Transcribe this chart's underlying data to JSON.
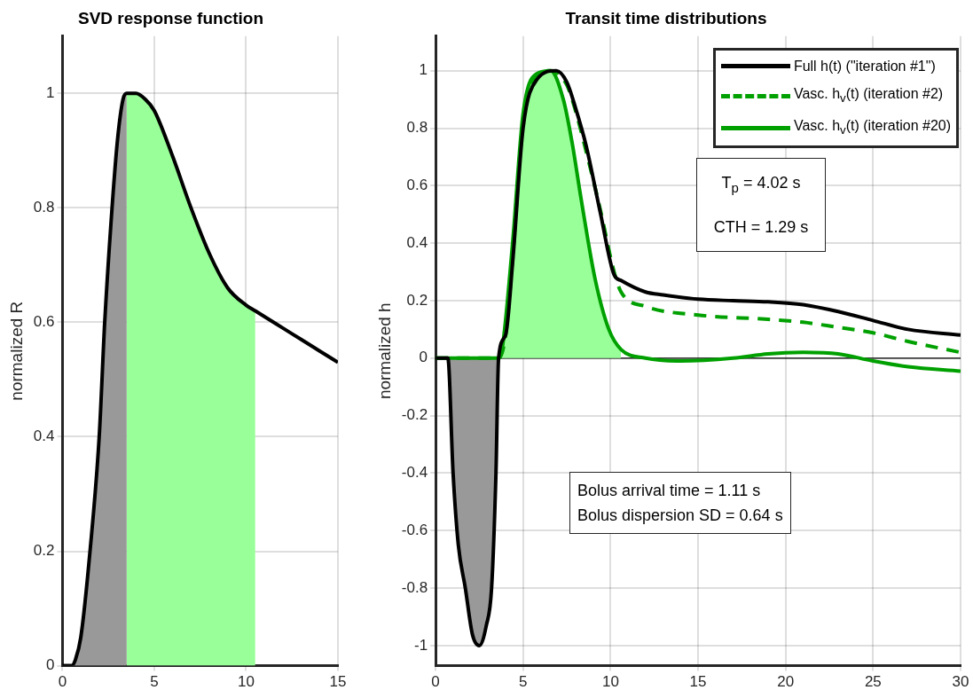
{
  "chart_data": [
    {
      "type": "line",
      "title": "SVD response function",
      "ylabel": "normalized R",
      "xlim": [
        0,
        15
      ],
      "xticks": [
        0,
        5,
        10,
        15
      ],
      "ylim": [
        0,
        1.1
      ],
      "yticks": [
        0,
        0.2,
        0.4,
        0.6,
        0.8,
        1
      ],
      "grid": true,
      "legend": false,
      "marker": "none",
      "series": [
        {
          "type": "area",
          "color": "#999999",
          "x": [
            0,
            0.5,
            0.7,
            1,
            1.5,
            2,
            2.3,
            2.7,
            3,
            3.3,
            3.5
          ],
          "values": [
            0,
            0,
            0.01,
            0.05,
            0.2,
            0.4,
            0.6,
            0.8,
            0.92,
            0.99,
            1
          ]
        },
        {
          "type": "area",
          "color": "#99ff99",
          "x": [
            3.5,
            4,
            4.5,
            5,
            6,
            7,
            8,
            9,
            10,
            10.5
          ],
          "values": [
            1,
            1,
            0.99,
            0.97,
            0.89,
            0.8,
            0.72,
            0.66,
            0.63,
            0.62
          ]
        },
        {
          "type": "line",
          "color": "#000000",
          "line_style": "solid",
          "x": [
            0,
            0.5,
            0.7,
            1,
            1.5,
            2,
            2.3,
            2.7,
            3,
            3.3,
            3.5,
            4,
            4.5,
            5,
            6,
            7,
            8,
            9,
            10,
            10.5,
            11,
            12,
            13,
            14,
            15
          ],
          "values": [
            0,
            0,
            0.01,
            0.05,
            0.2,
            0.4,
            0.6,
            0.8,
            0.92,
            0.99,
            1,
            1,
            0.99,
            0.97,
            0.89,
            0.8,
            0.72,
            0.66,
            0.63,
            0.62,
            0.61,
            0.59,
            0.57,
            0.55,
            0.53
          ]
        }
      ]
    },
    {
      "type": "line",
      "title": "Transit time distributions",
      "ylabel": "normalized h",
      "xlim": [
        0,
        30
      ],
      "xticks": [
        0,
        5,
        10,
        15,
        20,
        25,
        30
      ],
      "ylim": [
        -1.07,
        1.12
      ],
      "yticks": [
        -1,
        -0.8,
        -0.6,
        -0.4,
        -0.2,
        0,
        0.2,
        0.4,
        0.6,
        0.8,
        1
      ],
      "grid": true,
      "legend": "top right",
      "marker": "none",
      "ref_lines": [
        {
          "axis": "y",
          "value": 0,
          "color": "#000000"
        }
      ],
      "annotations": [
        "T$_{p}$ = 4.02 s",
        "CTH = 1.29 s",
        "Bolus arrival time = 1.11 s",
        "Bolus dispersion SD = 0.64 s"
      ],
      "series": [
        {
          "type": "area",
          "color": "#999999",
          "x": [
            0.7,
            1,
            1.3,
            1.7,
            2.1,
            2.5,
            2.9,
            3.2,
            3.45,
            3.6
          ],
          "values": [
            0,
            -0.4,
            -0.65,
            -0.8,
            -0.96,
            -1,
            -0.93,
            -0.8,
            -0.4,
            0
          ]
        },
        {
          "type": "area",
          "color": "#99ff99",
          "x": [
            3.6,
            3.8,
            4.4,
            5,
            5.8,
            6.57,
            7.3,
            7.8,
            8.3,
            9.1,
            9.9,
            10.6
          ],
          "values": [
            0,
            0.03,
            0.4,
            0.85,
            0.99,
            1,
            0.9,
            0.75,
            0.56,
            0.28,
            0.1,
            0.03
          ]
        },
        {
          "type": "line",
          "name": "Full h(t) (\"iteration #1\")",
          "color": "#000000",
          "line_style": "solid",
          "x": [
            0,
            0.7,
            1,
            1.3,
            1.7,
            2.1,
            2.5,
            2.9,
            3.2,
            3.45,
            3.6,
            4,
            4.4,
            5,
            5.8,
            6.9,
            7.5,
            8,
            8.6,
            9.4,
            10.2,
            10.6,
            12,
            13,
            15,
            17,
            19,
            21,
            23,
            25,
            27,
            30
          ],
          "values": [
            0,
            0,
            -0.4,
            -0.65,
            -0.8,
            -0.96,
            -1,
            -0.93,
            -0.8,
            -0.4,
            0,
            0.08,
            0.33,
            0.8,
            0.97,
            1,
            0.96,
            0.87,
            0.74,
            0.51,
            0.29,
            0.27,
            0.23,
            0.22,
            0.205,
            0.2,
            0.196,
            0.186,
            0.162,
            0.131,
            0.1,
            0.08
          ]
        },
        {
          "type": "line",
          "name": "Vasc. h$_{v}$(t) (iteration #2)",
          "color": "#00a000",
          "line_style": "dashed",
          "x": [
            0,
            3.6,
            4,
            4.4,
            5,
            5.8,
            6.6,
            7.5,
            8,
            8.6,
            9.4,
            10.2,
            10.6,
            12,
            15,
            19,
            21,
            23,
            25,
            27,
            30
          ],
          "values": [
            0,
            0,
            0.08,
            0.35,
            0.82,
            0.98,
            1,
            0.95,
            0.86,
            0.72,
            0.52,
            0.3,
            0.23,
            0.18,
            0.15,
            0.135,
            0.125,
            0.107,
            0.088,
            0.058,
            0.02
          ]
        },
        {
          "type": "line",
          "name": "Vasc. h$_{v}$(t) (iteration #20)",
          "color": "#00a000",
          "line_style": "solid",
          "x": [
            0,
            3.6,
            3.8,
            4.4,
            5,
            5.8,
            6.57,
            7.3,
            7.8,
            8.3,
            9.1,
            9.9,
            10.6,
            12,
            14,
            17,
            19,
            21,
            23,
            25,
            27,
            30
          ],
          "values": [
            0,
            0,
            0.03,
            0.4,
            0.85,
            0.99,
            1,
            0.9,
            0.75,
            0.56,
            0.28,
            0.1,
            0.03,
            0,
            -0.01,
            0,
            0.015,
            0.02,
            0.015,
            -0.01,
            -0.03,
            -0.045
          ]
        }
      ]
    }
  ]
}
